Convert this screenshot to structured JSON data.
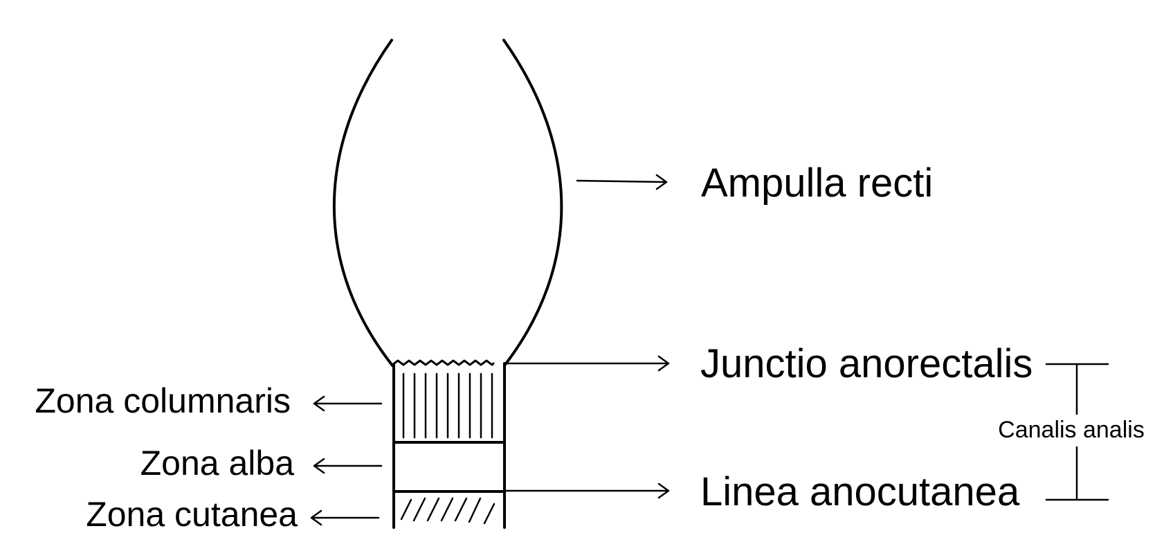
{
  "labels": {
    "ampulla_recti": "Ampulla recti",
    "junctio_anorectalis": "Junctio anorectalis",
    "linea_anocutanea": "Linea anocutanea",
    "canalis_analis": "Canalis analis",
    "zona_columnaris": "Zona columnaris",
    "zona_alba": "Zona alba",
    "zona_cutanea": "Zona cutanea"
  },
  "colors": {
    "ink": "#000000",
    "background": "#ffffff"
  }
}
